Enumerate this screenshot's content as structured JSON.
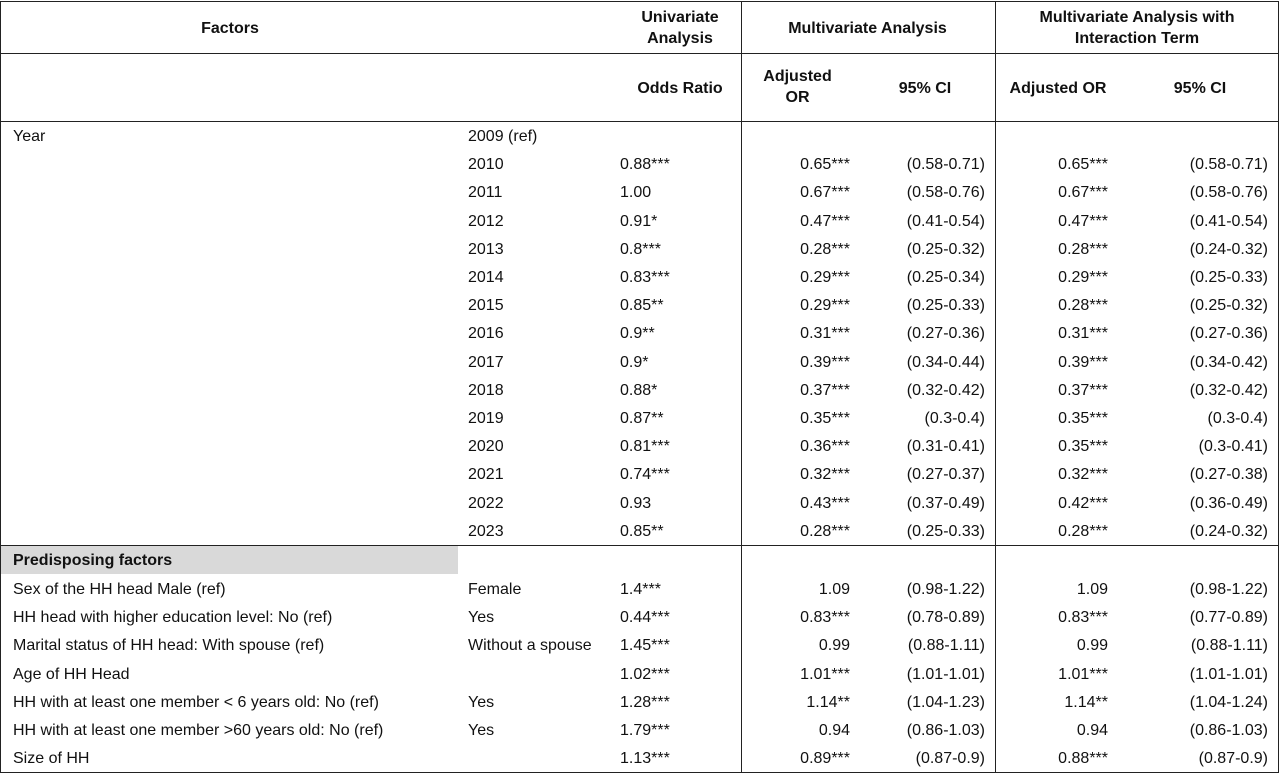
{
  "header": {
    "factors": "Factors",
    "univariate": "Univariate Analysis",
    "multivariate": "Multivariate Analysis",
    "interaction": "Multivariate Analysis with Interaction Term",
    "odds_ratio": "Odds Ratio",
    "adjusted_or_1": "Adjusted OR",
    "ci_1": "95% CI",
    "adjusted_or_2": "Adjusted OR",
    "ci_2": "95% CI"
  },
  "year_section": {
    "factor": "Year",
    "rows": [
      {
        "level": "2009 (ref)",
        "or": "",
        "aor": "",
        "ci": "",
        "aor2": "",
        "ci2": ""
      },
      {
        "level": "2010",
        "or": "0.88***",
        "aor": "0.65***",
        "ci": "(0.58-0.71)",
        "aor2": "0.65***",
        "ci2": "(0.58-0.71)"
      },
      {
        "level": "2011",
        "or": "1.00",
        "aor": "0.67***",
        "ci": "(0.58-0.76)",
        "aor2": "0.67***",
        "ci2": "(0.58-0.76)"
      },
      {
        "level": "2012",
        "or": "0.91*",
        "aor": "0.47***",
        "ci": "(0.41-0.54)",
        "aor2": "0.47***",
        "ci2": "(0.41-0.54)"
      },
      {
        "level": "2013",
        "or": "0.8***",
        "aor": "0.28***",
        "ci": "(0.25-0.32)",
        "aor2": "0.28***",
        "ci2": "(0.24-0.32)"
      },
      {
        "level": "2014",
        "or": "0.83***",
        "aor": "0.29***",
        "ci": "(0.25-0.34)",
        "aor2": "0.29***",
        "ci2": "(0.25-0.33)"
      },
      {
        "level": "2015",
        "or": "0.85**",
        "aor": "0.29***",
        "ci": "(0.25-0.33)",
        "aor2": "0.28***",
        "ci2": "(0.25-0.32)"
      },
      {
        "level": "2016",
        "or": "0.9**",
        "aor": "0.31***",
        "ci": "(0.27-0.36)",
        "aor2": "0.31***",
        "ci2": "(0.27-0.36)"
      },
      {
        "level": "2017",
        "or": "0.9*",
        "aor": "0.39***",
        "ci": "(0.34-0.44)",
        "aor2": "0.39***",
        "ci2": "(0.34-0.42)"
      },
      {
        "level": "2018",
        "or": "0.88*",
        "aor": "0.37***",
        "ci": "(0.32-0.42)",
        "aor2": "0.37***",
        "ci2": "(0.32-0.42)"
      },
      {
        "level": "2019",
        "or": "0.87**",
        "aor": "0.35***",
        "ci": "(0.3-0.4)",
        "aor2": "0.35***",
        "ci2": "(0.3-0.4)"
      },
      {
        "level": "2020",
        "or": "0.81***",
        "aor": "0.36***",
        "ci": "(0.31-0.41)",
        "aor2": "0.35***",
        "ci2": "(0.3-0.41)"
      },
      {
        "level": "2021",
        "or": "0.74***",
        "aor": "0.32***",
        "ci": "(0.27-0.37)",
        "aor2": "0.32***",
        "ci2": "(0.27-0.38)"
      },
      {
        "level": "2022",
        "or": "0.93",
        "aor": "0.43***",
        "ci": "(0.37-0.49)",
        "aor2": "0.42***",
        "ci2": "(0.36-0.49)"
      },
      {
        "level": "2023",
        "or": "0.85**",
        "aor": "0.28***",
        "ci": "(0.25-0.33)",
        "aor2": "0.28***",
        "ci2": "(0.24-0.32)"
      }
    ]
  },
  "predisposing": {
    "title": "Predisposing factors",
    "rows": [
      {
        "factor": "Sex of the HH head Male (ref)",
        "level": "Female",
        "or": "1.4***",
        "aor": "1.09",
        "ci": "(0.98-1.22)",
        "aor2": "1.09",
        "ci2": "(0.98-1.22)"
      },
      {
        "factor": "HH head with higher education level: No (ref)",
        "level": "Yes",
        "or": "0.44***",
        "aor": "0.83***",
        "ci": "(0.78-0.89)",
        "aor2": "0.83***",
        "ci2": "(0.77-0.89)"
      },
      {
        "factor": "Marital status of HH head: With spouse (ref)",
        "level": "Without a spouse",
        "or": "1.45***",
        "aor": "0.99",
        "ci": "(0.88-1.11)",
        "aor2": "0.99",
        "ci2": "(0.88-1.11)"
      },
      {
        "factor": "Age of HH Head",
        "level": "",
        "or": "1.02***",
        "aor": "1.01***",
        "ci": "(1.01-1.01)",
        "aor2": "1.01***",
        "ci2": "(1.01-1.01)"
      },
      {
        "factor": "HH with at least one member < 6 years old: No (ref)",
        "level": "Yes",
        "or": "1.28***",
        "aor": "1.14**",
        "ci": "(1.04-1.23)",
        "aor2": "1.14**",
        "ci2": "(1.04-1.24)"
      },
      {
        "factor": "HH with at least one member >60 years old: No (ref)",
        "level": "Yes",
        "or": "1.79***",
        "aor": "0.94",
        "ci": "(0.86-1.03)",
        "aor2": "0.94",
        "ci2": "(0.86-1.03)"
      },
      {
        "factor": "Size of HH",
        "level": "",
        "or": "1.13***",
        "aor": "0.89***",
        "ci": "(0.87-0.9)",
        "aor2": "0.88***",
        "ci2": "(0.87-0.9)"
      }
    ]
  },
  "colors": {
    "section_band": "#d9d9d9",
    "rule": "#222222"
  }
}
